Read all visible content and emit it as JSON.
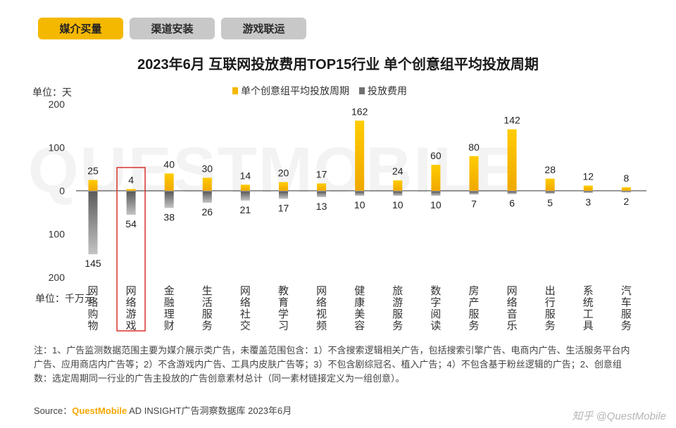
{
  "tabs": [
    {
      "label": "媒介买量",
      "active": true
    },
    {
      "label": "渠道安装",
      "active": false
    },
    {
      "label": "游戏联运",
      "active": false
    }
  ],
  "watermark": "QUESTMOBILE",
  "units": {
    "top": "单位：天",
    "bottom": "单位：千万元"
  },
  "note": "注：1、广告监测数据范围主要为媒介展示类广告，未覆盖范围包含：1）不含搜索逻辑相关广告，包括搜索引擎广告、电商内广告、生活服务平台内广告、应用商店内广告等；2）不含游戏内广告、工具内皮肤广告等；3）不包含剧综冠名、植入广告；4）不包含基于粉丝逻辑的广告；2、创意组数：选定周期同一行业的广告主投放的广告创意素材总计（同一素材链接定义为一组创意）。",
  "source": {
    "prefix": "Source：",
    "brand": "QuestMobile",
    "suffix": " AD INSIGHT广告洞察数据库 2023年6月"
  },
  "footer_right": "知乎 @QuestMobile",
  "colors": {
    "gold": "#f5b800",
    "grey": "#8a8a8a",
    "highlight": "#d9332e"
  },
  "chart_data": {
    "type": "bar",
    "title": "2023年6月 互联网投放费用TOP15行业 单个创意组平均投放周期",
    "categories": [
      "网络购物",
      "网络游戏",
      "金融理财",
      "生活服务",
      "网络社交",
      "教育学习",
      "网络视频",
      "健康美容",
      "旅游服务",
      "数字阅读",
      "房产服务",
      "网络音乐",
      "出行服务",
      "系统工具",
      "汽车服务"
    ],
    "series": [
      {
        "name": "单个创意组平均投放周期",
        "values": [
          25,
          4,
          40,
          30,
          14,
          20,
          17,
          162,
          24,
          60,
          80,
          142,
          28,
          12,
          8
        ],
        "color": "#f5b800"
      },
      {
        "name": "投放费用",
        "values": [
          145,
          54,
          38,
          26,
          21,
          17,
          13,
          10,
          10,
          10,
          7,
          6,
          5,
          3,
          2
        ],
        "color": "#8a8a8a"
      }
    ],
    "yticks": [
      "200",
      "100",
      "0",
      "100",
      "200"
    ],
    "ylim": [
      -200,
      200
    ],
    "highlight_index": 1,
    "legend": "top-center",
    "grid": false
  }
}
